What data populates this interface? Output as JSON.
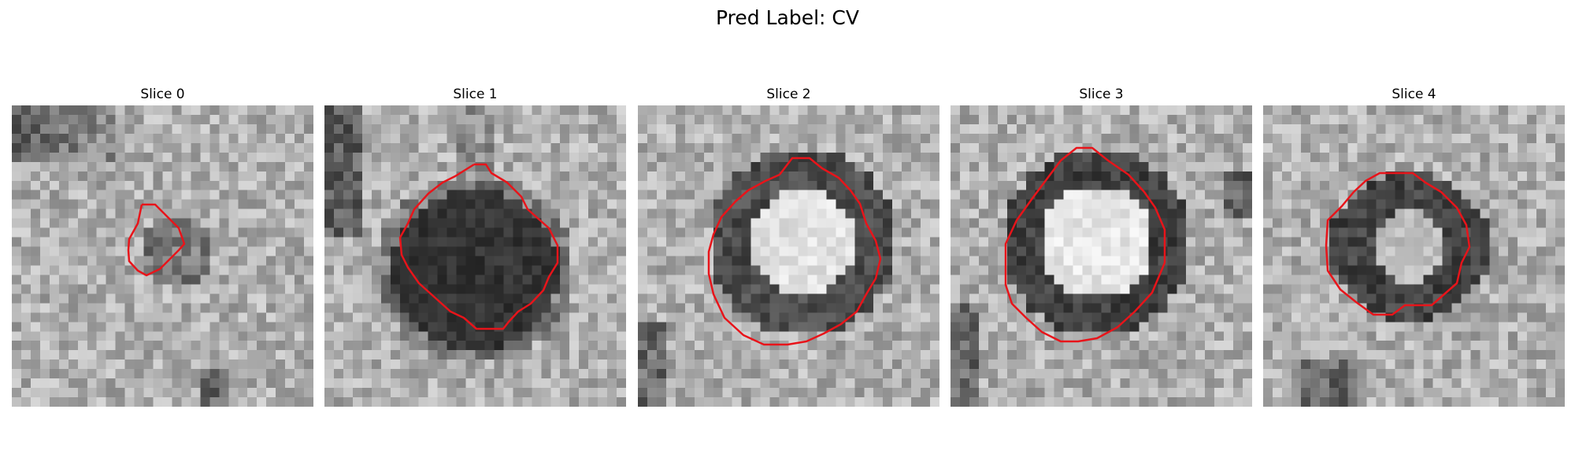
{
  "figure": {
    "title": "Pred Label: CV",
    "contour_color": "#e8141a"
  },
  "slices": [
    {
      "title": "Slice 0",
      "intensity_description": "grey noisy texture, small darker blob inside small contour"
    },
    {
      "title": "Slice 1",
      "intensity_description": "large dark blob inside contour"
    },
    {
      "title": "Slice 2",
      "intensity_description": "bright core with dark ring inside contour"
    },
    {
      "title": "Slice 3",
      "intensity_description": "bright core with dark ring inside contour"
    },
    {
      "title": "Slice 4",
      "intensity_description": "dark ring with lighter center inside contour"
    }
  ]
}
